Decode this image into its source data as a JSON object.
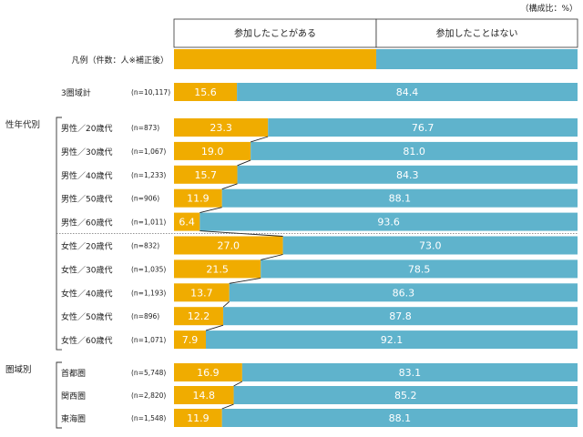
{
  "chart_data": {
    "type": "bar",
    "stacked": true,
    "orientation": "horizontal",
    "unit_label": "（構成比：%）",
    "legend_label": "凡例（件数：人※補正後）",
    "series": [
      {
        "name": "参加したことがある",
        "color": "#f0ac00"
      },
      {
        "name": "参加したことはない",
        "color": "#5fb3cc"
      }
    ],
    "groups": [
      {
        "label": "",
        "rows": [
          {
            "label": "3圏域計",
            "n": "(n=10,117)",
            "values": [
              15.6,
              84.4
            ]
          }
        ]
      },
      {
        "label": "性年代別",
        "rows": [
          {
            "label": "男性／20歳代",
            "n": "(n=873)",
            "values": [
              23.3,
              76.7
            ]
          },
          {
            "label": "男性／30歳代",
            "n": "(n=1,067)",
            "values": [
              19.0,
              81.0
            ]
          },
          {
            "label": "男性／40歳代",
            "n": "(n=1,233)",
            "values": [
              15.7,
              84.3
            ]
          },
          {
            "label": "男性／50歳代",
            "n": "(n=906)",
            "values": [
              11.9,
              88.1
            ]
          },
          {
            "label": "男性／60歳代",
            "n": "(n=1,011)",
            "values": [
              6.4,
              93.6
            ]
          },
          {
            "label": "女性／20歳代",
            "n": "(n=832)",
            "values": [
              27.0,
              73.0
            ]
          },
          {
            "label": "女性／30歳代",
            "n": "(n=1,035)",
            "values": [
              21.5,
              78.5
            ]
          },
          {
            "label": "女性／40歳代",
            "n": "(n=1,193)",
            "values": [
              13.7,
              86.3
            ]
          },
          {
            "label": "女性／50歳代",
            "n": "(n=896)",
            "values": [
              12.2,
              87.8
            ]
          },
          {
            "label": "女性／60歳代",
            "n": "(n=1,071)",
            "values": [
              7.9,
              92.1
            ]
          }
        ]
      },
      {
        "label": "圏域別",
        "rows": [
          {
            "label": "首都圏",
            "n": "(n=5,748)",
            "values": [
              16.9,
              83.1
            ]
          },
          {
            "label": "関西圏",
            "n": "(n=2,820)",
            "values": [
              14.8,
              85.2
            ]
          },
          {
            "label": "東海圏",
            "n": "(n=1,548)",
            "values": [
              11.9,
              88.1
            ]
          }
        ]
      }
    ],
    "xlim": [
      0,
      100
    ],
    "title": "",
    "xlabel": "",
    "ylabel": ""
  }
}
